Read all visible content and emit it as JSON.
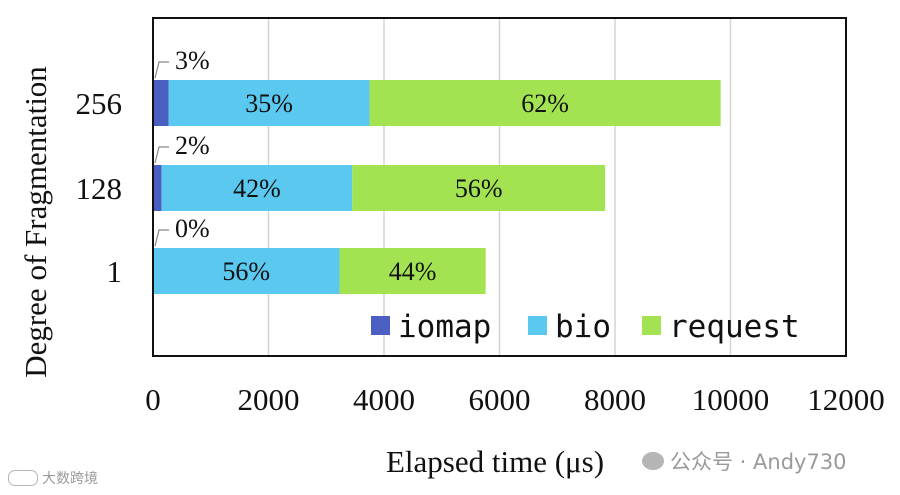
{
  "chart_data": {
    "type": "bar",
    "orientation": "horizontal",
    "stacked": true,
    "categories": [
      "256",
      "128",
      "1"
    ],
    "series": [
      {
        "name": "iomap",
        "color": "#4a5fc1",
        "values": [
          270,
          150,
          0
        ]
      },
      {
        "name": "bio",
        "color": "#5bc8f0",
        "values": [
          3480,
          3300,
          3230
        ]
      },
      {
        "name": "request",
        "color": "#a3e352",
        "values": [
          6080,
          4380,
          2530
        ]
      }
    ],
    "percent_labels": [
      [
        "3%",
        "35%",
        "62%"
      ],
      [
        "2%",
        "42%",
        "56%"
      ],
      [
        "0%",
        "56%",
        "44%"
      ]
    ],
    "xlabel": "Elapsed time (μs)",
    "ylabel": "Degree of Fragmentation",
    "xlim": [
      0,
      12000
    ],
    "xticks": [
      "0",
      "2000",
      "4000",
      "6000",
      "8000",
      "10000",
      "12000"
    ],
    "xtick_values": [
      0,
      2000,
      4000,
      6000,
      8000,
      10000,
      12000
    ],
    "grid": "vertical",
    "legend_position": "bottom-right"
  },
  "watermark": {
    "wechat": "公众号 · Andy730",
    "corner": "大数跨境"
  }
}
